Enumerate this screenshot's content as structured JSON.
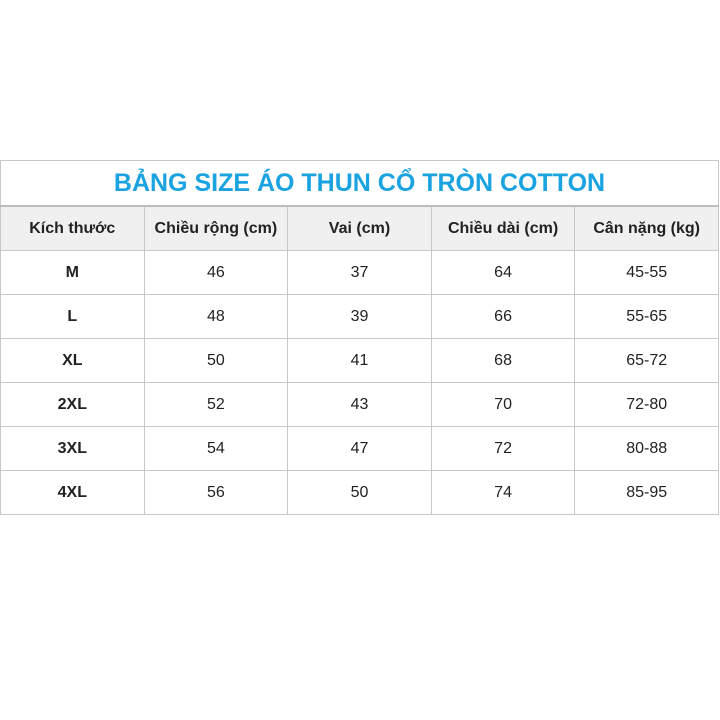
{
  "title": "BẢNG SIZE ÁO THUN CỔ TRÒN COTTON",
  "headers": [
    "Kích thước",
    "Chiều rộng (cm)",
    "Vai (cm)",
    "Chiều dài (cm)",
    "Cân nặng (kg)"
  ],
  "rows": [
    [
      "M",
      "46",
      "37",
      "64",
      "45-55"
    ],
    [
      "L",
      "48",
      "39",
      "66",
      "55-65"
    ],
    [
      "XL",
      "50",
      "41",
      "68",
      "65-72"
    ],
    [
      "2XL",
      "52",
      "43",
      "70",
      "72-80"
    ],
    [
      "3XL",
      "54",
      "47",
      "72",
      "80-88"
    ],
    [
      "4XL",
      "56",
      "50",
      "74",
      "85-95"
    ]
  ],
  "colors": {
    "title": "#1aa3e0",
    "header_bg": "#f0f0f0",
    "border": "#c8c8c8"
  }
}
